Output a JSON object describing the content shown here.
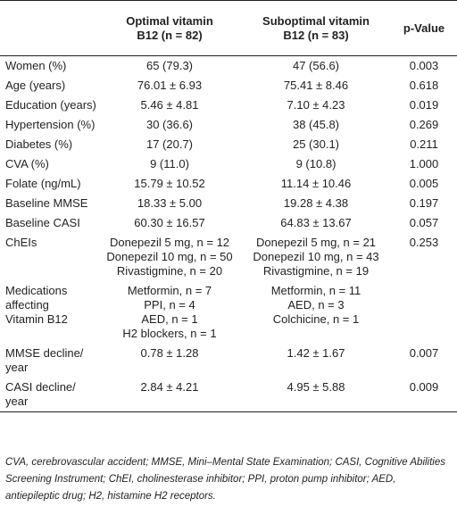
{
  "table": {
    "headers": {
      "col1": [
        "Optimal vitamin",
        "B12 (n = 82)"
      ],
      "col2": [
        "Suboptimal vitamin",
        "B12 (n = 83)"
      ],
      "col3": "p-Value"
    },
    "rows": [
      {
        "label": [
          "Women (%)"
        ],
        "optimal": [
          "65 (79.3)"
        ],
        "suboptimal": [
          "47 (56.6)"
        ],
        "p": "0.003"
      },
      {
        "label": [
          "Age (years)"
        ],
        "optimal": [
          "76.01 ± 6.93"
        ],
        "suboptimal": [
          "75.41 ± 8.46"
        ],
        "p": "0.618"
      },
      {
        "label": [
          "Education (years)"
        ],
        "optimal": [
          "5.46 ± 4.81"
        ],
        "suboptimal": [
          "7.10 ± 4.23"
        ],
        "p": "0.019"
      },
      {
        "label": [
          "Hypertension (%)"
        ],
        "optimal": [
          "30 (36.6)"
        ],
        "suboptimal": [
          "38 (45.8)"
        ],
        "p": "0.269"
      },
      {
        "label": [
          "Diabetes (%)"
        ],
        "optimal": [
          "17 (20.7)"
        ],
        "suboptimal": [
          "25 (30.1)"
        ],
        "p": "0.211"
      },
      {
        "label": [
          "CVA (%)"
        ],
        "optimal": [
          "9 (11.0)"
        ],
        "suboptimal": [
          "9 (10.8)"
        ],
        "p": "1.000"
      },
      {
        "label": [
          "Folate (ng/mL)"
        ],
        "optimal": [
          "15.79 ± 10.52"
        ],
        "suboptimal": [
          "11.14 ± 10.46"
        ],
        "p": "0.005"
      },
      {
        "label": [
          "Baseline MMSE"
        ],
        "optimal": [
          "18.33 ± 5.00"
        ],
        "suboptimal": [
          "19.28 ± 4.38"
        ],
        "p": "0.197"
      },
      {
        "label": [
          "Baseline CASI"
        ],
        "optimal": [
          "60.30 ± 16.57"
        ],
        "suboptimal": [
          "64.83 ± 13.67"
        ],
        "p": "0.057"
      },
      {
        "label": [
          "ChEIs"
        ],
        "optimal": [
          "Donepezil 5 mg, n = 12",
          "Donepezil 10 mg, n = 50",
          "Rivastigmine, n = 20"
        ],
        "suboptimal": [
          "Donepezil 5 mg, n = 21",
          "Donepezil 10 mg, n = 43",
          "Rivastigmine, n = 19"
        ],
        "p": "0.253"
      },
      {
        "label": [
          "Medications",
          "affecting",
          "Vitamin B12"
        ],
        "optimal": [
          "Metformin, n = 7",
          "PPI, n = 4",
          "AED, n = 1",
          "H2 blockers, n = 1"
        ],
        "suboptimal": [
          "Metformin, n = 11",
          "AED, n = 3",
          "Colchicine, n = 1"
        ],
        "p": ""
      },
      {
        "label": [
          "MMSE decline/",
          "year"
        ],
        "optimal": [
          "0.78 ± 1.28"
        ],
        "suboptimal": [
          "1.42 ± 1.67"
        ],
        "p": "0.007"
      },
      {
        "label": [
          "CASI decline/",
          "year"
        ],
        "optimal": [
          "2.84 ± 4.21"
        ],
        "suboptimal": [
          "4.95 ± 5.88"
        ],
        "p": "0.009"
      }
    ]
  },
  "footnote": "CVA, cerebrovascular accident; MMSE, Mini–Mental State Examination; CASI, Cognitive Abilities Screening Instrument; ChEI, cholinesterase inhibitor; PPI, proton pump inhibitor; AED, antiepileptic drug; H2, histamine H2 receptors."
}
